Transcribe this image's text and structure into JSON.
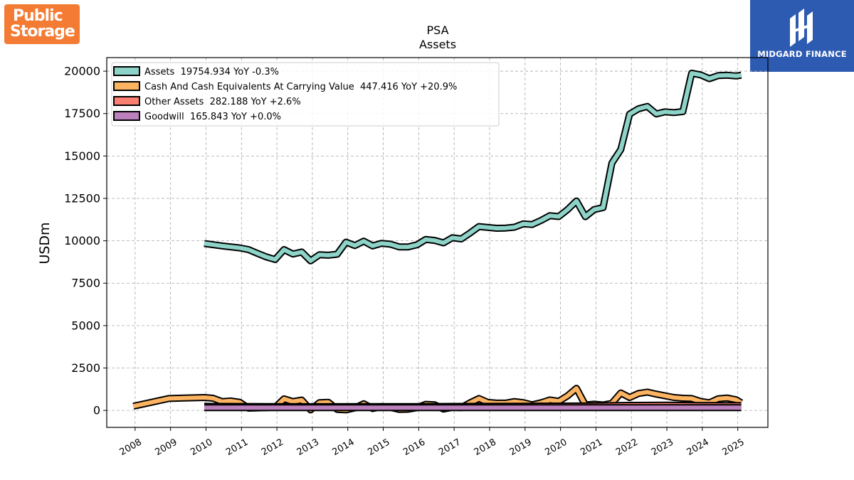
{
  "logos": {
    "left_text_line1": "Public",
    "left_text_line2": "Storage",
    "left_color": "#f37b34",
    "right_text": "MIDGARD FINANCE",
    "right_color": "#2d5bb2"
  },
  "chart_data": {
    "type": "line",
    "title": "PSA",
    "subtitle": "Assets",
    "ylabel": "USDm",
    "xlabel": "",
    "ylim": [
      -1000,
      20800
    ],
    "xlim": [
      2007.2,
      2025.85
    ],
    "x_ticks": [
      2008,
      2009,
      2010,
      2011,
      2012,
      2013,
      2014,
      2015,
      2016,
      2017,
      2018,
      2019,
      2020,
      2021,
      2022,
      2023,
      2024,
      2025
    ],
    "y_ticks": [
      0,
      2500,
      5000,
      7500,
      10000,
      12500,
      15000,
      17500,
      20000
    ],
    "grid": true,
    "legend_position": "top-left",
    "series": [
      {
        "name": "Assets",
        "legend": "Assets  19754.934 YoY -0.3%",
        "color": "#8dd3c7",
        "x": [
          2009.95,
          2010.45,
          2010.95,
          2011.2,
          2011.45,
          2011.7,
          2011.95,
          2012.2,
          2012.45,
          2012.7,
          2012.95,
          2013.2,
          2013.45,
          2013.7,
          2013.95,
          2014.2,
          2014.45,
          2014.7,
          2014.95,
          2015.2,
          2015.45,
          2015.7,
          2015.95,
          2016.2,
          2016.45,
          2016.7,
          2016.95,
          2017.2,
          2017.45,
          2017.7,
          2017.95,
          2018.2,
          2018.45,
          2018.7,
          2018.95,
          2019.2,
          2019.45,
          2019.7,
          2019.95,
          2020.2,
          2020.45,
          2020.7,
          2020.95,
          2021.2,
          2021.45,
          2021.7,
          2021.95,
          2022.2,
          2022.45,
          2022.7,
          2022.95,
          2023.2,
          2023.45,
          2023.7,
          2023.95,
          2024.2,
          2024.45,
          2024.7,
          2024.95,
          2025.1
        ],
        "y": [
          9840,
          9700,
          9580,
          9480,
          9260,
          9050,
          8900,
          9480,
          9220,
          9340,
          8820,
          9180,
          9150,
          9210,
          9920,
          9720,
          9980,
          9700,
          9850,
          9800,
          9640,
          9640,
          9760,
          10080,
          10020,
          9880,
          10180,
          10110,
          10460,
          10840,
          10790,
          10740,
          10750,
          10800,
          11000,
          10960,
          11200,
          11480,
          11430,
          11840,
          12350,
          11420,
          11840,
          11960,
          14580,
          15380,
          17470,
          17780,
          17920,
          17480,
          17600,
          17560,
          17620,
          19880,
          19780,
          19560,
          19740,
          19760,
          19720,
          19760
        ]
      },
      {
        "name": "Cash And Cash Equivalents At Carrying Value",
        "legend": "Cash And Cash Equivalents At Carrying Value  447.416 YoY +20.9%",
        "color": "#fdb462",
        "x": [
          2007.95,
          2008.95,
          2009.95,
          2010.2,
          2010.45,
          2010.7,
          2010.95,
          2011.2,
          2011.45,
          2011.7,
          2011.95,
          2012.2,
          2012.45,
          2012.7,
          2012.95,
          2013.2,
          2013.45,
          2013.7,
          2013.95,
          2014.2,
          2014.45,
          2014.7,
          2014.95,
          2015.2,
          2015.45,
          2015.7,
          2015.95,
          2016.2,
          2016.45,
          2016.7,
          2016.95,
          2017.2,
          2017.45,
          2017.7,
          2017.95,
          2018.2,
          2018.45,
          2018.7,
          2018.95,
          2019.2,
          2019.45,
          2019.7,
          2019.95,
          2020.2,
          2020.45,
          2020.7,
          2020.95,
          2021.2,
          2021.45,
          2021.7,
          2021.95,
          2022.2,
          2022.45,
          2022.7,
          2022.95,
          2023.2,
          2023.45,
          2023.7,
          2023.95,
          2024.2,
          2024.45,
          2024.7,
          2024.95,
          2025.1
        ],
        "y": [
          250,
          700,
          760,
          720,
          520,
          560,
          480,
          130,
          150,
          160,
          180,
          680,
          520,
          610,
          30,
          460,
          480,
          60,
          30,
          150,
          390,
          110,
          230,
          180,
          60,
          70,
          160,
          360,
          330,
          80,
          180,
          160,
          450,
          700,
          470,
          430,
          430,
          520,
          460,
          330,
          450,
          620,
          540,
          860,
          1300,
          320,
          370,
          320,
          420,
          1030,
          760,
          1000,
          1080,
          960,
          860,
          760,
          720,
          700,
          530,
          450,
          690,
          730,
          630,
          450
        ]
      },
      {
        "name": "Other Assets",
        "legend": "Other Assets  282.188 YoY +2.6%",
        "color": "#fb8072",
        "x": [
          2009.95,
          2012.95,
          2015.95,
          2018.95,
          2020.95,
          2021.95,
          2022.95,
          2023.95,
          2024.95,
          2025.1
        ],
        "y": [
          240,
          220,
          230,
          250,
          270,
          300,
          310,
          290,
          285,
          282
        ]
      },
      {
        "name": "Goodwill",
        "legend": "Goodwill  165.843 YoY +0.0%",
        "color": "#bc80bd",
        "x": [
          2009.95,
          2025.1
        ],
        "y": [
          165.8,
          165.8
        ]
      }
    ]
  }
}
